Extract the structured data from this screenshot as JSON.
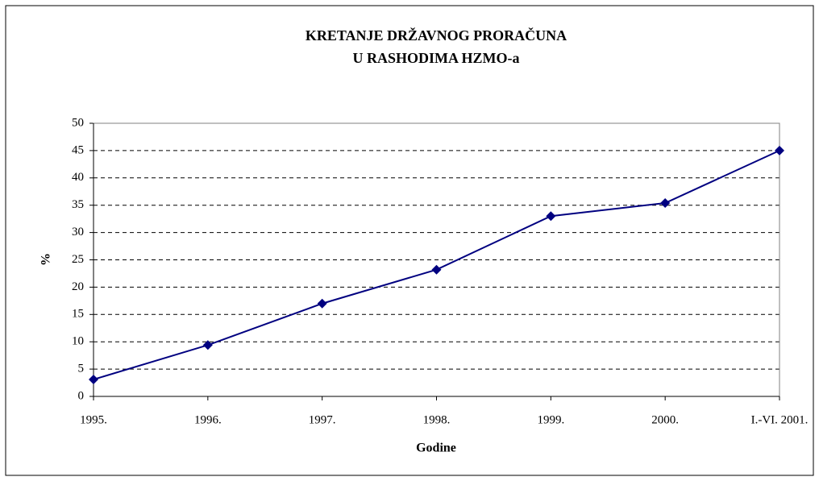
{
  "chart_data": {
    "type": "line",
    "title": [
      "KRETANJE DRŽAVNOG PRORAČUNA",
      "U RASHODIMA HZMO-a"
    ],
    "x_label": "Godine",
    "y_label": "%",
    "categories": [
      "1995.",
      "1996.",
      "1997.",
      "1998.",
      "1999.",
      "2000.",
      "I.-VI. 2001."
    ],
    "series": [
      {
        "name": "%",
        "color": "#000080",
        "values": [
          3.1,
          9.4,
          17,
          23.2,
          33,
          35.4,
          45
        ]
      }
    ],
    "ylim": [
      0,
      50
    ],
    "yticks": [
      0,
      5,
      10,
      15,
      20,
      25,
      30,
      35,
      40,
      45,
      50
    ],
    "grid": true
  }
}
